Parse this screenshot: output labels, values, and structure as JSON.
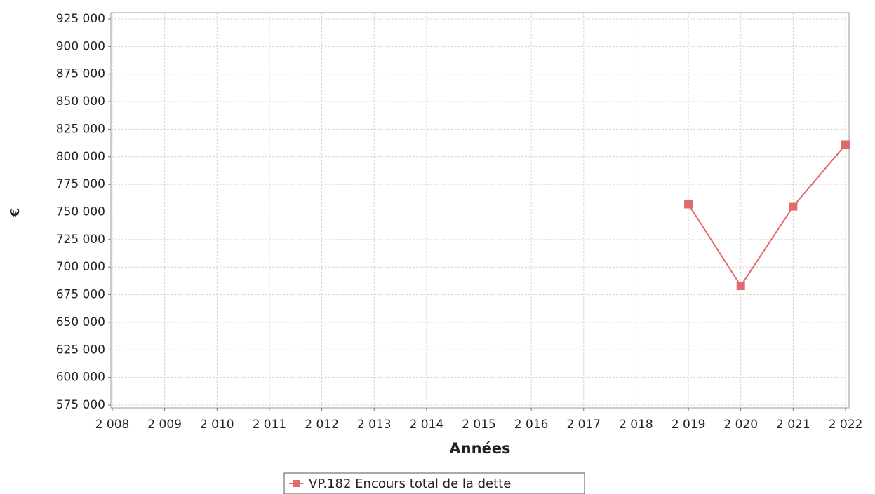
{
  "chart_data": {
    "type": "line",
    "x_label": "Années",
    "y_label": "€",
    "x": [
      2019,
      2020,
      2021,
      2022
    ],
    "series": [
      {
        "name": "VP.182 Encours total de la dette",
        "color": "#e06a6a",
        "values": [
          757000,
          683000,
          755000,
          811000
        ]
      }
    ],
    "xlim": [
      2008,
      2022
    ],
    "xticks": [
      {
        "value": 2008,
        "label": "2 008"
      },
      {
        "value": 2009,
        "label": "2 009"
      },
      {
        "value": 2010,
        "label": "2 010"
      },
      {
        "value": 2011,
        "label": "2 011"
      },
      {
        "value": 2012,
        "label": "2 012"
      },
      {
        "value": 2013,
        "label": "2 013"
      },
      {
        "value": 2014,
        "label": "2 014"
      },
      {
        "value": 2015,
        "label": "2 015"
      },
      {
        "value": 2016,
        "label": "2 016"
      },
      {
        "value": 2017,
        "label": "2 017"
      },
      {
        "value": 2018,
        "label": "2 018"
      },
      {
        "value": 2019,
        "label": "2 019"
      },
      {
        "value": 2020,
        "label": "2 020"
      },
      {
        "value": 2021,
        "label": "2 021"
      },
      {
        "value": 2022,
        "label": "2 022"
      }
    ],
    "ylim": [
      575000,
      925000
    ],
    "yticks": [
      {
        "value": 575000,
        "label": "575 000"
      },
      {
        "value": 600000,
        "label": "600 000"
      },
      {
        "value": 625000,
        "label": "625 000"
      },
      {
        "value": 650000,
        "label": "650 000"
      },
      {
        "value": 675000,
        "label": "675 000"
      },
      {
        "value": 700000,
        "label": "700 000"
      },
      {
        "value": 725000,
        "label": "725 000"
      },
      {
        "value": 750000,
        "label": "750 000"
      },
      {
        "value": 775000,
        "label": "775 000"
      },
      {
        "value": 800000,
        "label": "800 000"
      },
      {
        "value": 825000,
        "label": "825 000"
      },
      {
        "value": 850000,
        "label": "850 000"
      },
      {
        "value": 875000,
        "label": "875 000"
      },
      {
        "value": 900000,
        "label": "900 000"
      },
      {
        "value": 925000,
        "label": "925 000"
      }
    ],
    "grid": true,
    "legend": "bottom"
  }
}
